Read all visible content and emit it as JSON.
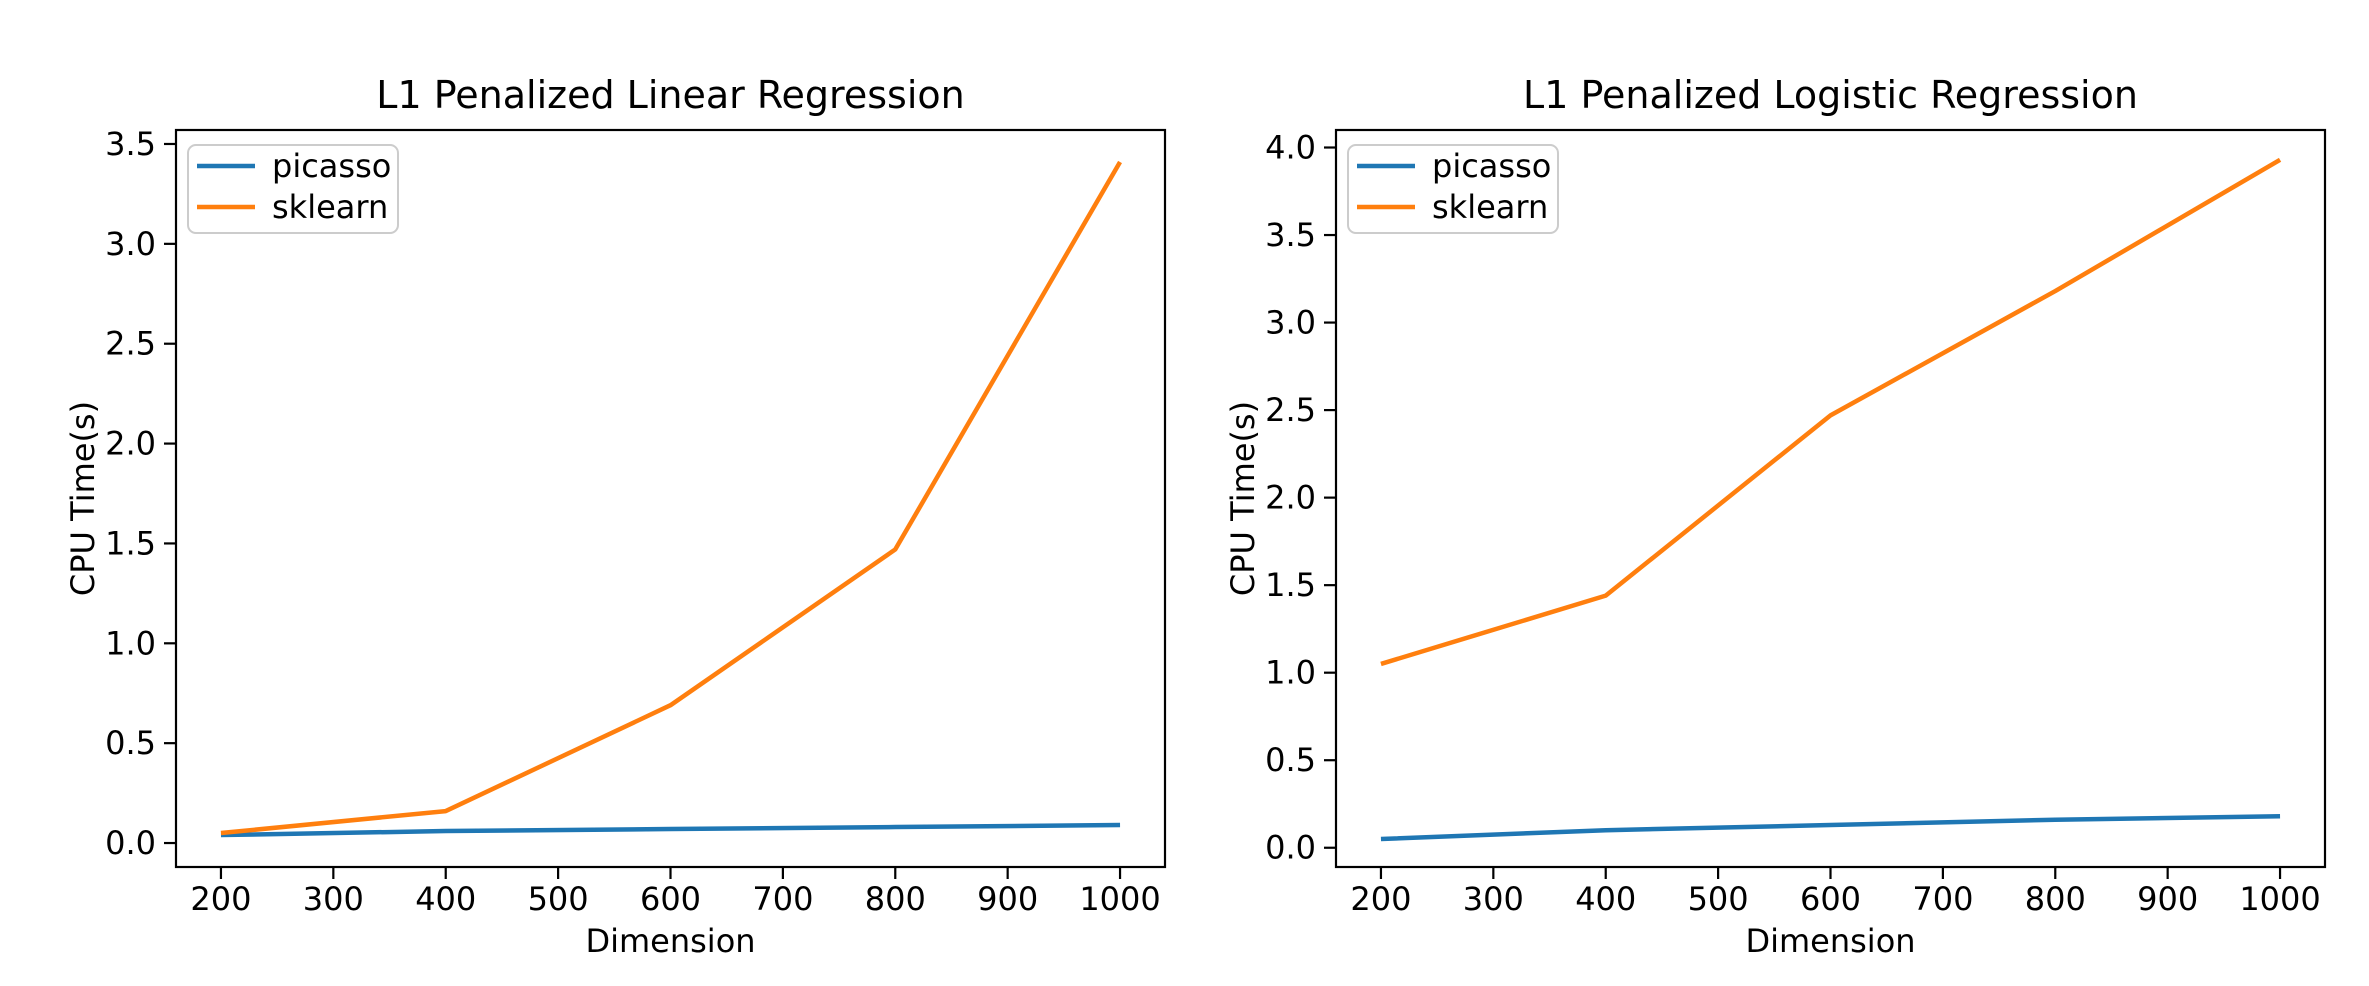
{
  "figure": {
    "background": "#ffffff",
    "axes_color": "#000000",
    "legend_border_color": "#cccccc",
    "legend_background": "#ffffff"
  },
  "chart_data": [
    {
      "type": "line",
      "title": "L1 Penalized Linear Regression",
      "xlabel": "Dimension",
      "ylabel": "CPU Time(s)",
      "x": [
        200,
        400,
        600,
        800,
        1000
      ],
      "series": [
        {
          "name": "picasso",
          "color": "#1f77b4",
          "values": [
            0.04,
            0.06,
            0.07,
            0.08,
            0.09
          ]
        },
        {
          "name": "sklearn",
          "color": "#ff7f0e",
          "values": [
            0.05,
            0.16,
            0.69,
            1.47,
            3.41
          ]
        }
      ],
      "xlim": [
        160,
        1040
      ],
      "ylim": [
        -0.12,
        3.57
      ],
      "xticks": [
        200,
        300,
        400,
        500,
        600,
        700,
        800,
        900,
        1000
      ],
      "xtick_labels": [
        "200",
        "300",
        "400",
        "500",
        "600",
        "700",
        "800",
        "900",
        "1000"
      ],
      "yticks": [
        0.0,
        0.5,
        1.0,
        1.5,
        2.0,
        2.5,
        3.0,
        3.5
      ],
      "ytick_labels": [
        "0.0",
        "0.5",
        "1.0",
        "1.5",
        "2.0",
        "2.5",
        "3.0",
        "3.5"
      ],
      "grid": false,
      "legend": {
        "position": "upper-left",
        "entries": [
          "picasso",
          "sklearn"
        ]
      }
    },
    {
      "type": "line",
      "title": "L1 Penalized Logistic Regression",
      "xlabel": "Dimension",
      "ylabel": "CPU Time(s)",
      "x": [
        200,
        400,
        600,
        800,
        1000
      ],
      "series": [
        {
          "name": "picasso",
          "color": "#1f77b4",
          "values": [
            0.05,
            0.1,
            0.13,
            0.16,
            0.18
          ]
        },
        {
          "name": "sklearn",
          "color": "#ff7f0e",
          "values": [
            1.05,
            1.44,
            2.47,
            3.18,
            3.93
          ]
        }
      ],
      "xlim": [
        160,
        1040
      ],
      "ylim": [
        -0.11,
        4.1
      ],
      "xticks": [
        200,
        300,
        400,
        500,
        600,
        700,
        800,
        900,
        1000
      ],
      "xtick_labels": [
        "200",
        "300",
        "400",
        "500",
        "600",
        "700",
        "800",
        "900",
        "1000"
      ],
      "yticks": [
        0.0,
        0.5,
        1.0,
        1.5,
        2.0,
        2.5,
        3.0,
        3.5,
        4.0
      ],
      "ytick_labels": [
        "0.0",
        "0.5",
        "1.0",
        "1.5",
        "2.0",
        "2.5",
        "3.0",
        "3.5",
        "4.0"
      ],
      "grid": false,
      "legend": {
        "position": "upper-left",
        "entries": [
          "picasso",
          "sklearn"
        ]
      }
    }
  ]
}
